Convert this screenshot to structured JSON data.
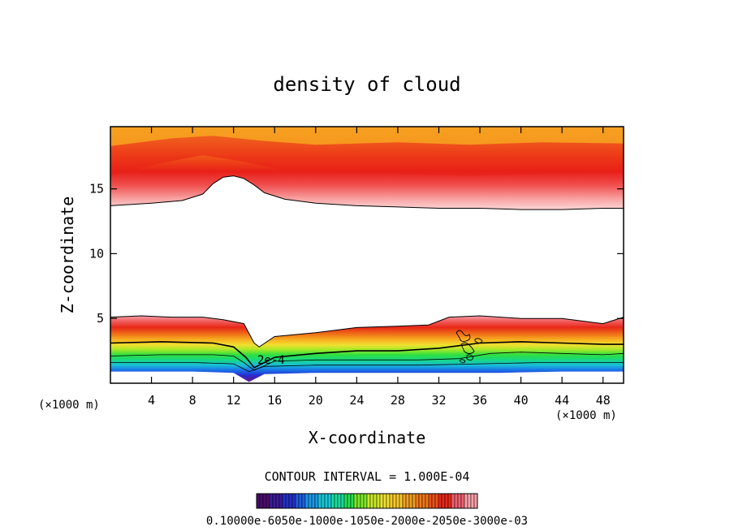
{
  "chart_data": {
    "type": "contour",
    "title": "density of cloud",
    "xlabel": "X-coordinate",
    "ylabel": "Z-coordinate",
    "x_unit": "(×1000 m)",
    "x_unit_right": "(×1000 m)",
    "xlim": [
      0,
      50
    ],
    "ylim": [
      0,
      19.8
    ],
    "x_ticks": [
      4,
      8,
      12,
      16,
      20,
      24,
      28,
      32,
      36,
      40,
      44,
      48
    ],
    "y_ticks": [
      5,
      10,
      15
    ],
    "contour_interval_label": "CONTOUR INTERVAL = 1.000E-04",
    "contour_annotation": "2e-4",
    "colorbar_labels_text": "0.10000e-6050e-1000e-1050e-2000e-2050e-3000e-03",
    "colorbar_colors": [
      "#4a0d6b",
      "#3a1a9a",
      "#2430c8",
      "#1f5fe0",
      "#1a98e8",
      "#18c8d8",
      "#1adca0",
      "#22e050",
      "#7ae828",
      "#c8e828",
      "#f0e030",
      "#f8c828",
      "#f0a020",
      "#f07818",
      "#f05018",
      "#e82818",
      "#f06070",
      "#f8a0a8"
    ],
    "upper_layer": {
      "bottom_edge": [
        [
          0,
          13.7
        ],
        [
          4,
          13.9
        ],
        [
          7,
          14.1
        ],
        [
          9,
          14.6
        ],
        [
          10,
          15.4
        ],
        [
          11,
          15.9
        ],
        [
          12,
          16.0
        ],
        [
          13,
          15.8
        ],
        [
          14,
          15.3
        ],
        [
          15,
          14.7
        ],
        [
          17,
          14.2
        ],
        [
          20,
          13.9
        ],
        [
          24,
          13.7
        ],
        [
          28,
          13.6
        ],
        [
          32,
          13.5
        ],
        [
          36,
          13.5
        ],
        [
          40,
          13.4
        ],
        [
          44,
          13.4
        ],
        [
          48,
          13.5
        ],
        [
          50,
          13.5
        ]
      ],
      "core_edge": [
        [
          0,
          16.0
        ],
        [
          5,
          17.0
        ],
        [
          9,
          17.6
        ],
        [
          13,
          17.1
        ],
        [
          17,
          16.4
        ],
        [
          25,
          16.2
        ],
        [
          35,
          16.0
        ],
        [
          45,
          16.2
        ],
        [
          50,
          16.3
        ]
      ],
      "cap_edge": [
        [
          0,
          18.3
        ],
        [
          6,
          18.9
        ],
        [
          10,
          19.1
        ],
        [
          15,
          18.7
        ],
        [
          20,
          18.4
        ],
        [
          28,
          18.6
        ],
        [
          35,
          18.4
        ],
        [
          42,
          18.6
        ],
        [
          50,
          18.5
        ]
      ]
    },
    "lower_layer": {
      "top_edge": [
        [
          0,
          5.1
        ],
        [
          3,
          5.2
        ],
        [
          6,
          5.1
        ],
        [
          9,
          5.1
        ],
        [
          11,
          4.9
        ],
        [
          13,
          4.6
        ],
        [
          14,
          3.1
        ],
        [
          14.5,
          2.8
        ],
        [
          16,
          3.6
        ],
        [
          20,
          3.9
        ],
        [
          24,
          4.3
        ],
        [
          28,
          4.4
        ],
        [
          31,
          4.5
        ],
        [
          33,
          5.1
        ],
        [
          36,
          5.2
        ],
        [
          40,
          5.0
        ],
        [
          44,
          5.0
        ],
        [
          48,
          4.6
        ],
        [
          50,
          5.1
        ]
      ],
      "contour_2e4": [
        [
          0,
          3.1
        ],
        [
          5,
          3.2
        ],
        [
          10,
          3.1
        ],
        [
          12,
          2.8
        ],
        [
          13.2,
          2.0
        ],
        [
          14,
          1.2
        ],
        [
          16,
          2.0
        ],
        [
          20,
          2.3
        ],
        [
          24,
          2.5
        ],
        [
          28,
          2.5
        ],
        [
          32,
          2.7
        ],
        [
          34,
          2.9
        ],
        [
          36,
          3.1
        ],
        [
          40,
          3.2
        ],
        [
          44,
          3.1
        ],
        [
          48,
          3.0
        ],
        [
          50,
          3.0
        ]
      ],
      "green_top": [
        [
          0,
          2.1
        ],
        [
          5,
          2.2
        ],
        [
          10,
          2.2
        ],
        [
          12,
          2.1
        ],
        [
          13,
          1.6
        ],
        [
          14,
          1.0
        ],
        [
          16,
          1.7
        ],
        [
          20,
          1.8
        ],
        [
          25,
          1.8
        ],
        [
          30,
          1.8
        ],
        [
          34,
          1.9
        ],
        [
          37,
          2.3
        ],
        [
          40,
          2.4
        ],
        [
          44,
          2.3
        ],
        [
          48,
          2.2
        ],
        [
          50,
          2.3
        ]
      ],
      "blue_top": [
        [
          0,
          1.6
        ],
        [
          8,
          1.6
        ],
        [
          12,
          1.5
        ],
        [
          13.5,
          0.9
        ],
        [
          15,
          1.3
        ],
        [
          20,
          1.4
        ],
        [
          30,
          1.4
        ],
        [
          36,
          1.5
        ],
        [
          42,
          1.6
        ],
        [
          50,
          1.6
        ]
      ],
      "base_edge": [
        [
          0,
          0.9
        ],
        [
          8,
          0.9
        ],
        [
          12,
          0.8
        ],
        [
          13.5,
          0.1
        ],
        [
          15,
          0.7
        ],
        [
          20,
          0.8
        ],
        [
          30,
          0.8
        ],
        [
          38,
          0.8
        ],
        [
          44,
          0.9
        ],
        [
          50,
          0.9
        ]
      ]
    }
  }
}
